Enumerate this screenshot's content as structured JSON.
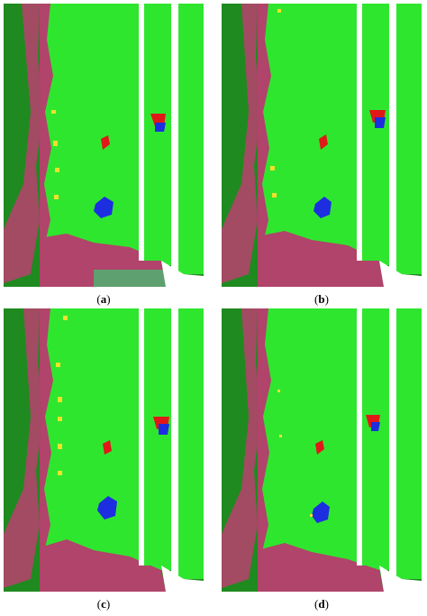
{
  "colors": {
    "field_light": "#2fe62f",
    "field_mid": "#33cc33",
    "field_dark": "#1f8a1f",
    "road": "#ffffff",
    "edge": "#1f3fe0",
    "soil": "#b0446a",
    "soil_gray": "#5fa070",
    "marker_red": "#e01818",
    "marker_blue": "#1c2ee0",
    "marker_yellow": "#f2e02a"
  },
  "panels": [
    {
      "label": "a",
      "caption_open": "(",
      "caption_close": ")"
    },
    {
      "label": "b",
      "caption_open": "(",
      "caption_close": ")"
    },
    {
      "label": "c",
      "caption_open": "(",
      "caption_close": ")"
    },
    {
      "label": "d",
      "caption_open": "(",
      "caption_close": ")"
    }
  ]
}
